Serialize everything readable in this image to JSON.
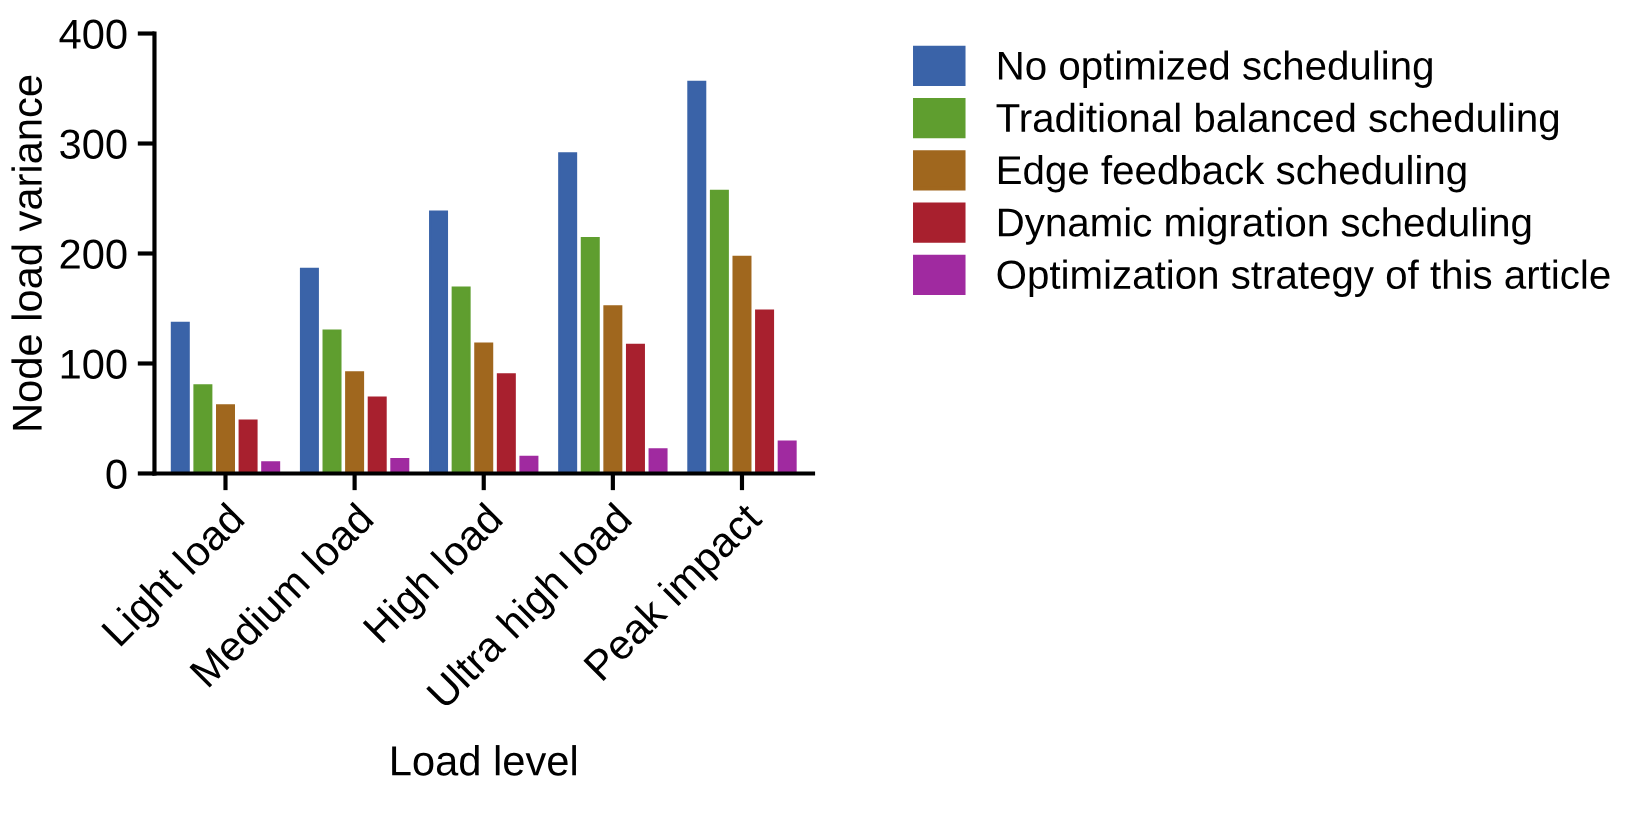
{
  "chart_data": {
    "type": "bar",
    "xlabel": "Load level",
    "ylabel": "Node load variance",
    "categories": [
      "Light load",
      "Medium load",
      "High load",
      "Ultra high load",
      "Peak impact"
    ],
    "series": [
      {
        "name": "No optimized scheduling",
        "color": "#3a63a8",
        "values": [
          137,
          186,
          238,
          291,
          356
        ]
      },
      {
        "name": "Traditional balanced scheduling",
        "color": "#5f9e2f",
        "values": [
          80,
          130,
          169,
          214,
          257
        ]
      },
      {
        "name": "Edge feedback scheduling",
        "color": "#a0671e",
        "values": [
          62,
          92,
          118,
          152,
          197
        ]
      },
      {
        "name": "Dynamic migration scheduling",
        "color": "#a8202e",
        "values": [
          48,
          69,
          90,
          117,
          148
        ]
      },
      {
        "name": "Optimization strategy of this article",
        "color": "#a02aa0",
        "values": [
          10,
          13,
          15,
          22,
          29
        ]
      }
    ],
    "ylim": [
      0,
      400
    ],
    "yticks": [
      0,
      100,
      200,
      300,
      400
    ],
    "grid": false,
    "legend": "right"
  }
}
